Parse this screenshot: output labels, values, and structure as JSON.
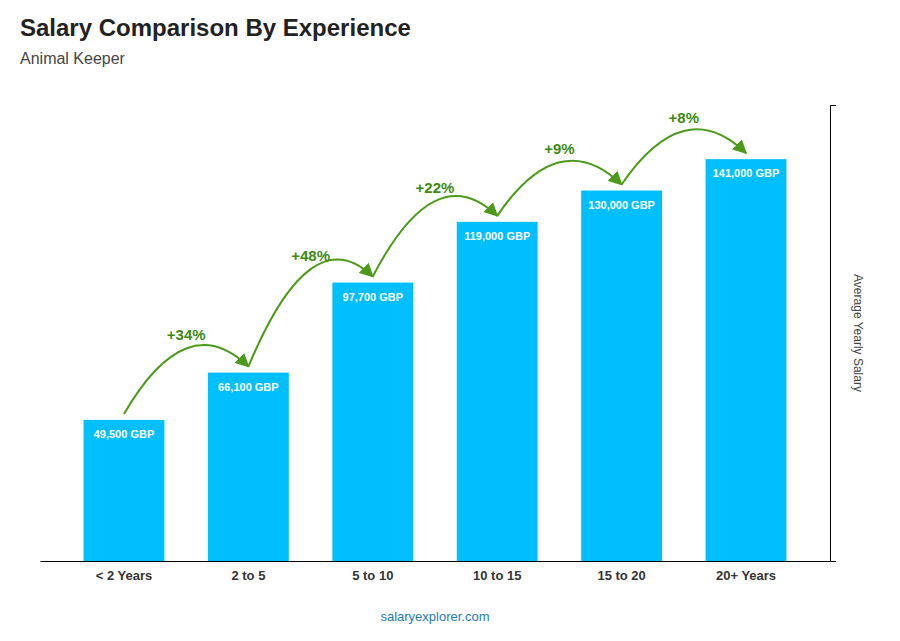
{
  "chart_data": {
    "type": "bar",
    "title": "Salary Comparison By Experience",
    "subtitle": "Animal Keeper",
    "ylabel": "Average Yearly Salary",
    "categories": [
      "< 2 Years",
      "2 to 5",
      "5 to 10",
      "10 to 15",
      "15 to 20",
      "20+ Years"
    ],
    "values": [
      49500,
      66100,
      97700,
      119000,
      130000,
      141000
    ],
    "value_labels": [
      "49,500 GBP",
      "66,100 GBP",
      "97,700 GBP",
      "119,000 GBP",
      "130,000 GBP",
      "141,000 GBP"
    ],
    "data_labels": true,
    "color": "#00BFFF",
    "ylim": [
      0,
      160000
    ],
    "yticks": [],
    "tick_labels": "x",
    "grid": false,
    "annotations": [
      {
        "text": "+34%",
        "from": "< 2 Years",
        "to": "2 to 5"
      },
      {
        "text": "+48%",
        "from": "2 to 5",
        "to": "5 to 10"
      },
      {
        "text": "+22%",
        "from": "5 to 10",
        "to": "10 to 15"
      },
      {
        "text": "+9%",
        "from": "10 to 15",
        "to": "15 to 20"
      },
      {
        "text": "+8%",
        "from": "15 to 20",
        "to": "20+ Years"
      },
      {
        "text": "salaryexplorer.com"
      }
    ]
  }
}
